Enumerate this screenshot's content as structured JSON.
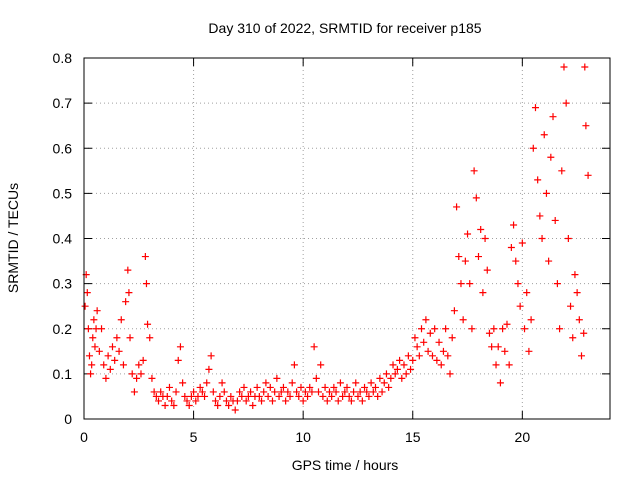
{
  "chart_data": {
    "type": "scatter",
    "title": "Day 310 of 2022, SRMTID for receiver p185",
    "xlabel": "GPS time / hours",
    "ylabel": "SRMTID / TECUs",
    "xlim": [
      0,
      24
    ],
    "ylim": [
      0,
      0.8
    ],
    "x_ticks": [
      0,
      5,
      10,
      15,
      20
    ],
    "x_tick_labels": [
      "0",
      "5",
      "10",
      "15",
      "20"
    ],
    "y_ticks": [
      0,
      0.1,
      0.2,
      0.3,
      0.4,
      0.5,
      0.6,
      0.7,
      0.8
    ],
    "y_tick_labels": [
      "0",
      "0.1",
      "0.2",
      "0.3",
      "0.4",
      "0.5",
      "0.6",
      "0.7",
      "0.8"
    ],
    "grid": true,
    "marker": "+",
    "color": "#ff0000",
    "series": [
      {
        "name": "SRMTID",
        "points": [
          [
            0.05,
            0.25
          ],
          [
            0.1,
            0.32
          ],
          [
            0.15,
            0.28
          ],
          [
            0.2,
            0.2
          ],
          [
            0.25,
            0.14
          ],
          [
            0.3,
            0.1
          ],
          [
            0.35,
            0.12
          ],
          [
            0.4,
            0.18
          ],
          [
            0.45,
            0.22
          ],
          [
            0.5,
            0.16
          ],
          [
            0.55,
            0.2
          ],
          [
            0.6,
            0.24
          ],
          [
            0.7,
            0.15
          ],
          [
            0.8,
            0.2
          ],
          [
            0.9,
            0.12
          ],
          [
            1.0,
            0.09
          ],
          [
            1.1,
            0.14
          ],
          [
            1.2,
            0.11
          ],
          [
            1.3,
            0.16
          ],
          [
            1.4,
            0.13
          ],
          [
            1.5,
            0.18
          ],
          [
            1.6,
            0.15
          ],
          [
            1.7,
            0.22
          ],
          [
            1.8,
            0.12
          ],
          [
            1.9,
            0.26
          ],
          [
            2.0,
            0.33
          ],
          [
            2.05,
            0.28
          ],
          [
            2.1,
            0.18
          ],
          [
            2.2,
            0.1
          ],
          [
            2.3,
            0.06
          ],
          [
            2.4,
            0.09
          ],
          [
            2.5,
            0.12
          ],
          [
            2.6,
            0.1
          ],
          [
            2.7,
            0.13
          ],
          [
            2.8,
            0.36
          ],
          [
            2.85,
            0.3
          ],
          [
            2.9,
            0.21
          ],
          [
            3.0,
            0.18
          ],
          [
            3.1,
            0.09
          ],
          [
            3.2,
            0.06
          ],
          [
            3.3,
            0.05
          ],
          [
            3.4,
            0.04
          ],
          [
            3.5,
            0.06
          ],
          [
            3.6,
            0.05
          ],
          [
            3.7,
            0.03
          ],
          [
            3.8,
            0.05
          ],
          [
            3.9,
            0.07
          ],
          [
            4.0,
            0.04
          ],
          [
            4.1,
            0.03
          ],
          [
            4.2,
            0.06
          ],
          [
            4.3,
            0.13
          ],
          [
            4.4,
            0.16
          ],
          [
            4.5,
            0.08
          ],
          [
            4.6,
            0.05
          ],
          [
            4.7,
            0.04
          ],
          [
            4.8,
            0.03
          ],
          [
            4.9,
            0.05
          ],
          [
            5.0,
            0.06
          ],
          [
            5.1,
            0.04
          ],
          [
            5.2,
            0.05
          ],
          [
            5.3,
            0.07
          ],
          [
            5.4,
            0.06
          ],
          [
            5.5,
            0.05
          ],
          [
            5.6,
            0.08
          ],
          [
            5.7,
            0.11
          ],
          [
            5.8,
            0.14
          ],
          [
            5.9,
            0.06
          ],
          [
            6.0,
            0.04
          ],
          [
            6.1,
            0.03
          ],
          [
            6.2,
            0.05
          ],
          [
            6.3,
            0.08
          ],
          [
            6.4,
            0.06
          ],
          [
            6.5,
            0.04
          ],
          [
            6.6,
            0.03
          ],
          [
            6.7,
            0.05
          ],
          [
            6.8,
            0.04
          ],
          [
            6.9,
            0.02
          ],
          [
            7.0,
            0.04
          ],
          [
            7.1,
            0.06
          ],
          [
            7.2,
            0.05
          ],
          [
            7.3,
            0.07
          ],
          [
            7.4,
            0.04
          ],
          [
            7.5,
            0.05
          ],
          [
            7.6,
            0.06
          ],
          [
            7.7,
            0.03
          ],
          [
            7.8,
            0.05
          ],
          [
            7.9,
            0.07
          ],
          [
            8.0,
            0.05
          ],
          [
            8.1,
            0.04
          ],
          [
            8.2,
            0.06
          ],
          [
            8.3,
            0.08
          ],
          [
            8.4,
            0.05
          ],
          [
            8.5,
            0.07
          ],
          [
            8.6,
            0.04
          ],
          [
            8.7,
            0.06
          ],
          [
            8.8,
            0.09
          ],
          [
            8.9,
            0.05
          ],
          [
            9.0,
            0.06
          ],
          [
            9.1,
            0.07
          ],
          [
            9.2,
            0.04
          ],
          [
            9.3,
            0.06
          ],
          [
            9.4,
            0.05
          ],
          [
            9.5,
            0.08
          ],
          [
            9.6,
            0.12
          ],
          [
            9.7,
            0.06
          ],
          [
            9.8,
            0.05
          ],
          [
            9.9,
            0.07
          ],
          [
            10.0,
            0.04
          ],
          [
            10.1,
            0.06
          ],
          [
            10.2,
            0.05
          ],
          [
            10.3,
            0.07
          ],
          [
            10.4,
            0.06
          ],
          [
            10.5,
            0.16
          ],
          [
            10.6,
            0.09
          ],
          [
            10.7,
            0.06
          ],
          [
            10.8,
            0.12
          ],
          [
            10.9,
            0.05
          ],
          [
            11.0,
            0.07
          ],
          [
            11.1,
            0.04
          ],
          [
            11.2,
            0.06
          ],
          [
            11.3,
            0.05
          ],
          [
            11.4,
            0.07
          ],
          [
            11.5,
            0.06
          ],
          [
            11.6,
            0.04
          ],
          [
            11.7,
            0.08
          ],
          [
            11.8,
            0.05
          ],
          [
            11.9,
            0.06
          ],
          [
            12.0,
            0.07
          ],
          [
            12.1,
            0.05
          ],
          [
            12.2,
            0.04
          ],
          [
            12.3,
            0.06
          ],
          [
            12.4,
            0.08
          ],
          [
            12.5,
            0.05
          ],
          [
            12.6,
            0.06
          ],
          [
            12.7,
            0.04
          ],
          [
            12.8,
            0.07
          ],
          [
            12.9,
            0.06
          ],
          [
            13.0,
            0.05
          ],
          [
            13.1,
            0.08
          ],
          [
            13.2,
            0.06
          ],
          [
            13.3,
            0.07
          ],
          [
            13.4,
            0.05
          ],
          [
            13.5,
            0.09
          ],
          [
            13.6,
            0.06
          ],
          [
            13.7,
            0.08
          ],
          [
            13.8,
            0.1
          ],
          [
            13.9,
            0.07
          ],
          [
            14.0,
            0.09
          ],
          [
            14.1,
            0.12
          ],
          [
            14.2,
            0.1
          ],
          [
            14.3,
            0.11
          ],
          [
            14.4,
            0.13
          ],
          [
            14.5,
            0.09
          ],
          [
            14.6,
            0.12
          ],
          [
            14.7,
            0.1
          ],
          [
            14.8,
            0.14
          ],
          [
            14.9,
            0.11
          ],
          [
            15.0,
            0.13
          ],
          [
            15.1,
            0.18
          ],
          [
            15.2,
            0.16
          ],
          [
            15.3,
            0.14
          ],
          [
            15.4,
            0.2
          ],
          [
            15.5,
            0.17
          ],
          [
            15.6,
            0.22
          ],
          [
            15.7,
            0.15
          ],
          [
            15.8,
            0.19
          ],
          [
            15.9,
            0.14
          ],
          [
            16.0,
            0.2
          ],
          [
            16.1,
            0.13
          ],
          [
            16.2,
            0.17
          ],
          [
            16.3,
            0.12
          ],
          [
            16.4,
            0.15
          ],
          [
            16.5,
            0.2
          ],
          [
            16.6,
            0.14
          ],
          [
            16.7,
            0.1
          ],
          [
            16.8,
            0.18
          ],
          [
            16.9,
            0.24
          ],
          [
            17.0,
            0.47
          ],
          [
            17.1,
            0.36
          ],
          [
            17.2,
            0.3
          ],
          [
            17.3,
            0.22
          ],
          [
            17.4,
            0.35
          ],
          [
            17.5,
            0.41
          ],
          [
            17.6,
            0.3
          ],
          [
            17.7,
            0.2
          ],
          [
            17.8,
            0.55
          ],
          [
            17.9,
            0.49
          ],
          [
            18.0,
            0.36
          ],
          [
            18.1,
            0.42
          ],
          [
            18.2,
            0.28
          ],
          [
            18.3,
            0.4
          ],
          [
            18.4,
            0.33
          ],
          [
            18.5,
            0.19
          ],
          [
            18.6,
            0.16
          ],
          [
            18.7,
            0.2
          ],
          [
            18.8,
            0.12
          ],
          [
            18.9,
            0.16
          ],
          [
            19.0,
            0.08
          ],
          [
            19.1,
            0.2
          ],
          [
            19.2,
            0.15
          ],
          [
            19.3,
            0.21
          ],
          [
            19.4,
            0.12
          ],
          [
            19.5,
            0.38
          ],
          [
            19.6,
            0.43
          ],
          [
            19.7,
            0.35
          ],
          [
            19.8,
            0.3
          ],
          [
            19.9,
            0.25
          ],
          [
            20.0,
            0.39
          ],
          [
            20.1,
            0.2
          ],
          [
            20.2,
            0.28
          ],
          [
            20.3,
            0.15
          ],
          [
            20.4,
            0.22
          ],
          [
            20.5,
            0.6
          ],
          [
            20.6,
            0.69
          ],
          [
            20.7,
            0.53
          ],
          [
            20.8,
            0.45
          ],
          [
            20.9,
            0.4
          ],
          [
            21.0,
            0.63
          ],
          [
            21.1,
            0.5
          ],
          [
            21.2,
            0.35
          ],
          [
            21.3,
            0.58
          ],
          [
            21.4,
            0.67
          ],
          [
            21.5,
            0.44
          ],
          [
            21.6,
            0.3
          ],
          [
            21.7,
            0.2
          ],
          [
            21.8,
            0.55
          ],
          [
            21.9,
            0.78
          ],
          [
            22.0,
            0.7
          ],
          [
            22.1,
            0.4
          ],
          [
            22.2,
            0.25
          ],
          [
            22.3,
            0.18
          ],
          [
            22.4,
            0.32
          ],
          [
            22.5,
            0.28
          ],
          [
            22.6,
            0.22
          ],
          [
            22.7,
            0.14
          ],
          [
            22.8,
            0.19
          ],
          [
            22.85,
            0.78
          ],
          [
            22.9,
            0.65
          ],
          [
            23.0,
            0.54
          ]
        ]
      }
    ]
  }
}
